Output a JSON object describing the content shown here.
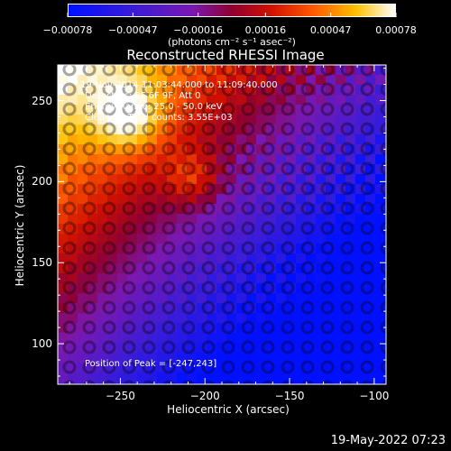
{
  "chart_data": {
    "type": "heatmap",
    "title": "Reconstructed RHESSI Image",
    "xlabel": "Heliocentric X (arcsec)",
    "ylabel": "Heliocentric Y (arcsec)",
    "xlim": [
      -287,
      -93
    ],
    "ylim": [
      75,
      272
    ],
    "x_ticks": [
      -250,
      -200,
      -150,
      -100
    ],
    "y_ticks": [
      100,
      150,
      200,
      250
    ],
    "x_tick_labels": [
      "−250",
      "−200",
      "−150",
      "−100"
    ],
    "y_tick_labels": [
      "100",
      "150",
      "200",
      "250"
    ],
    "colorbar": {
      "range": [
        -0.00078,
        0.00078
      ],
      "tick_values": [
        -0.00078,
        -0.00047,
        -0.00016,
        0.00016,
        0.00047,
        0.00078
      ],
      "tick_labels": [
        "−0.00078",
        "−0.00047",
        "−0.00016",
        "0.00016",
        "0.00047",
        "0.00078"
      ],
      "unit": "(photons cm⁻² s⁻¹ asec⁻²)"
    },
    "annotations": {
      "time": "19-Nov-2014 11:03:44.000 to 11:09:40.000",
      "detectors": "Detectors: 3F 6F 9F, Att 0",
      "energy": "Energy Range: 25.0 - 50.0 keV",
      "clean": "Clean      Total counts: 3.55E+03",
      "peak": "Position of Peak = [-247,243]"
    },
    "peak": [
      -247,
      243
    ]
  },
  "footer": {
    "timestamp": "19-May-2022 07:23"
  }
}
